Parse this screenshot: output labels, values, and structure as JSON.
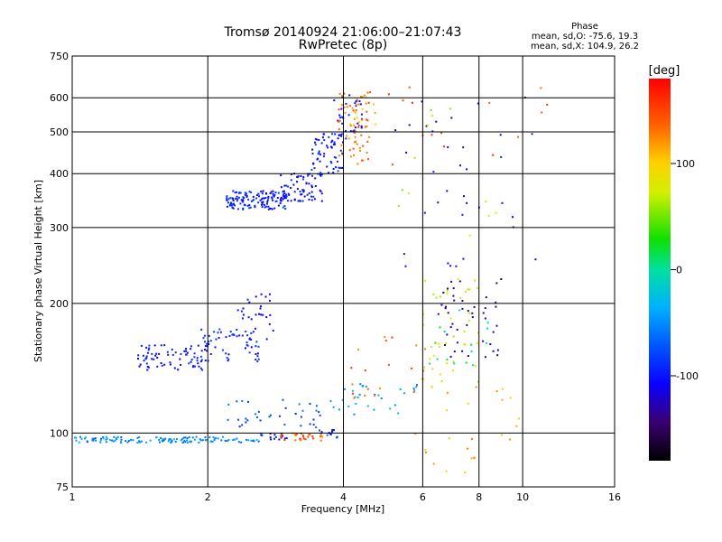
{
  "header": {
    "title_line1": "Tromsø 20140924 21:06:00–21:07:43",
    "title_line2": "RwPretec (8p)",
    "phase_title": "Phase",
    "phase_stats_o": "mean, sd,O: -75.6, 19.3",
    "phase_stats_x": "mean, sd,X: 104.9, 26.2"
  },
  "colorbar": {
    "unit_label": "[deg]",
    "ticks": [
      "100",
      "0",
      "-100"
    ],
    "tick_values": [
      100,
      0,
      -100
    ],
    "range": [
      -180,
      180
    ]
  },
  "chart_data": {
    "type": "scatter",
    "xlabel": "Frequency [MHz]",
    "ylabel": "Stationary phase Virtual Height [km]",
    "xscale": "log",
    "yscale": "log",
    "xlim": [
      1,
      16
    ],
    "ylim": [
      75,
      750
    ],
    "xticks": [
      1,
      2,
      4,
      6,
      8,
      10,
      16
    ],
    "xtick_labels": [
      "1",
      "2",
      "4",
      "6",
      "8",
      "10",
      "16"
    ],
    "yticks": [
      75,
      100,
      200,
      300,
      400,
      500,
      600,
      750
    ],
    "ytick_labels": [
      "75",
      "100",
      "200",
      "300",
      "400",
      "500",
      "600",
      "750"
    ],
    "grid": true,
    "clusters": [
      {
        "x_range": [
          1.0,
          2.6
        ],
        "y_range": [
          95,
          98
        ],
        "phase": -50,
        "count": 130
      },
      {
        "x_range": [
          2.6,
          3.0
        ],
        "y_range": [
          96,
          100
        ],
        "phase": -90,
        "count": 15
      },
      {
        "x_range": [
          2.9,
          3.6
        ],
        "y_range": [
          96,
          100
        ],
        "phase": 140,
        "count": 28
      },
      {
        "x_range": [
          3.5,
          3.9
        ],
        "y_range": [
          97,
          102
        ],
        "phase": -85,
        "count": 12
      },
      {
        "x_range": [
          1.4,
          2.0
        ],
        "y_range": [
          140,
          160
        ],
        "phase": -100,
        "count": 70
      },
      {
        "x_range": [
          1.9,
          2.6
        ],
        "y_range": [
          145,
          175
        ],
        "phase": -95,
        "count": 60
      },
      {
        "x_range": [
          2.3,
          2.8
        ],
        "y_range": [
          165,
          210
        ],
        "phase": -105,
        "count": 30
      },
      {
        "x_range": [
          2.2,
          3.0
        ],
        "y_range": [
          330,
          365
        ],
        "phase": -95,
        "count": 130
      },
      {
        "x_range": [
          2.9,
          3.6
        ],
        "y_range": [
          345,
          400
        ],
        "phase": -100,
        "count": 70
      },
      {
        "x_range": [
          3.4,
          4.0
        ],
        "y_range": [
          390,
          500
        ],
        "phase": -95,
        "count": 60
      },
      {
        "x_range": [
          3.8,
          4.4
        ],
        "y_range": [
          480,
          620
        ],
        "phase": -110,
        "count": 35
      },
      {
        "x_range": [
          3.9,
          4.6
        ],
        "y_range": [
          420,
          620
        ],
        "phase": 130,
        "count": 60
      },
      {
        "x_range": [
          4.1,
          4.8
        ],
        "y_range": [
          480,
          620
        ],
        "phase": 110,
        "count": 12
      },
      {
        "x_range": [
          2.2,
          3.6
        ],
        "y_range": [
          103,
          120
        ],
        "phase": -75,
        "count": 35
      },
      {
        "x_range": [
          3.5,
          6.0
        ],
        "y_range": [
          110,
          130
        ],
        "phase": -40,
        "count": 30
      },
      {
        "x_range": [
          4.0,
          6.2
        ],
        "y_range": [
          120,
          175
        ],
        "phase": 140,
        "count": 20
      },
      {
        "x_range": [
          6.0,
          8.0
        ],
        "y_range": [
          130,
          230
        ],
        "phase": 80,
        "count": 40
      },
      {
        "x_range": [
          6.5,
          9.0
        ],
        "y_range": [
          150,
          230
        ],
        "phase": -135,
        "count": 45
      },
      {
        "x_range": [
          6.2,
          8.5
        ],
        "y_range": [
          140,
          200
        ],
        "phase": 10,
        "count": 15
      },
      {
        "x_range": [
          5.5,
          10.0
        ],
        "y_range": [
          80,
          130
        ],
        "phase": 110,
        "count": 25
      },
      {
        "x_range": [
          5.0,
          12.0
        ],
        "y_range": [
          230,
          620
        ],
        "phase": -110,
        "count": 35
      },
      {
        "x_range": [
          5.0,
          13.0
        ],
        "y_range": [
          400,
          660
        ],
        "phase": 150,
        "count": 15
      },
      {
        "x_range": [
          5.0,
          9.0
        ],
        "y_range": [
          250,
          600
        ],
        "phase": 60,
        "count": 12
      }
    ]
  }
}
